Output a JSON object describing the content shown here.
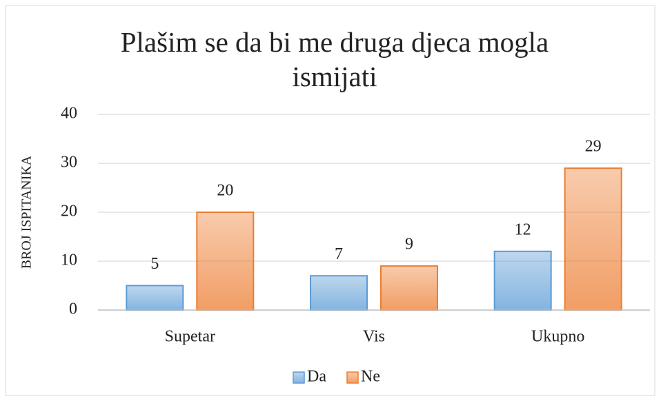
{
  "chart_data": {
    "type": "bar",
    "title": "Plašim se da bi me druga djeca mogla ismijati",
    "y_label": "BROJ ISPITANIKA",
    "categories": [
      "Supetar",
      "Vis",
      "Ukupno"
    ],
    "series": [
      {
        "name": "Da",
        "color": "#5b9bd5",
        "values": [
          5,
          7,
          12
        ]
      },
      {
        "name": "Ne",
        "color": "#ed7d31",
        "values": [
          20,
          9,
          29
        ]
      }
    ],
    "ylim": [
      0,
      40
    ],
    "yticks": [
      0,
      10,
      20,
      30,
      40
    ],
    "grid": true,
    "legend": "bottom"
  }
}
